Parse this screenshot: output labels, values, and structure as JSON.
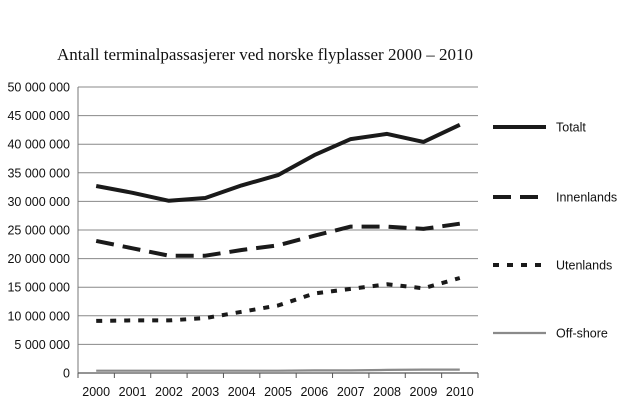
{
  "chart_data": {
    "type": "line",
    "title": "Antall terminalpassasjerer ved norske flyplasser 2000 – 2010",
    "xlabel": "",
    "ylabel": "",
    "categories": [
      "2000",
      "2001",
      "2002",
      "2003",
      "2004",
      "2005",
      "2006",
      "2007",
      "2008",
      "2009",
      "2010"
    ],
    "ylim": [
      0,
      50000000
    ],
    "y_ticks": [
      0,
      5000000,
      10000000,
      15000000,
      20000000,
      25000000,
      30000000,
      35000000,
      40000000,
      45000000,
      50000000
    ],
    "y_tick_labels": [
      "0",
      "5 000 000",
      "10 000 000",
      "15 000 000",
      "20 000 000",
      "25 000 000",
      "30 000 000",
      "35 000 000",
      "40 000 000",
      "45 000 000",
      "50 000 000"
    ],
    "grid": true,
    "legend_position": "right",
    "series": [
      {
        "name": "Totalt",
        "style": "solid",
        "color": "#1a1a1a",
        "values": [
          32700000,
          31500000,
          30100000,
          30600000,
          32800000,
          34600000,
          38100000,
          40900000,
          41800000,
          40400000,
          43400000
        ]
      },
      {
        "name": "Innenlands",
        "style": "dashed",
        "color": "#1a1a1a",
        "values": [
          23100000,
          21800000,
          20500000,
          20500000,
          21500000,
          22300000,
          24000000,
          25600000,
          25600000,
          25200000,
          26100000
        ]
      },
      {
        "name": "Utenlands",
        "style": "dotted",
        "color": "#1a1a1a",
        "values": [
          9100000,
          9200000,
          9200000,
          9600000,
          10700000,
          11800000,
          13900000,
          14700000,
          15500000,
          14800000,
          16600000
        ]
      },
      {
        "name": "Off-shore",
        "style": "solid-thin",
        "color": "#8a8a8a",
        "values": [
          400000,
          400000,
          400000,
          400000,
          400000,
          400000,
          450000,
          450000,
          550000,
          600000,
          600000
        ]
      }
    ]
  }
}
